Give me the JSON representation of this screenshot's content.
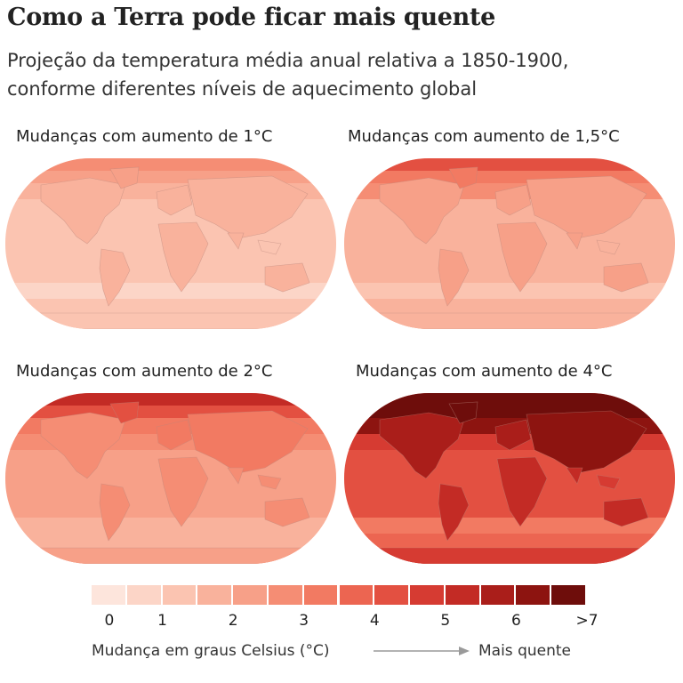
{
  "title": "Como a Terra pode ficar mais quente",
  "subtitle_line1": "Projeção da temperatura média anual relativa a 1850-1900,",
  "subtitle_line2": "conforme diferentes níveis de aquecimento global",
  "panels": [
    {
      "title": "Mudanças com aumento de 1°C",
      "warming": 1
    },
    {
      "title": "Mudanças com aumento de 1,5°C",
      "warming": 1.5
    },
    {
      "title": "Mudanças com aumento de 2°C",
      "warming": 2
    },
    {
      "title": "Mudanças com aumento de 4°C",
      "warming": 4
    }
  ],
  "legend": {
    "colors": [
      "#fde5dc",
      "#fcd5c7",
      "#fbc4b1",
      "#f9b29c",
      "#f7a088",
      "#f58d74",
      "#f27a62",
      "#ec6551",
      "#e35041",
      "#d63b32",
      "#c32b25",
      "#aa1e1a",
      "#8d1410",
      "#6e0d0b"
    ],
    "ticks": [
      "0",
      "1",
      "2",
      "3",
      "4",
      "5",
      "6",
      ">7"
    ],
    "caption": "Mudança em graus Celsius (°C)",
    "warmer": "Mais quente",
    "arrow_color": "#9a9a9a"
  },
  "chart_data": {
    "type": "heatmap",
    "title": "Como a Terra pode ficar mais quente",
    "subtitle": "Projeção da temperatura média anual relativa a 1850-1900, conforme diferentes níveis de aquecimento global",
    "maps": [
      {
        "title": "Mudanças com aumento de 1°C",
        "warming": 1
      },
      {
        "title": "Mudanças com aumento de 1,5°C",
        "warming": 1.5
      },
      {
        "title": "Mudanças com aumento de 2°C",
        "warming": 2
      },
      {
        "title": "Mudanças com aumento de 4°C",
        "warming": 4
      }
    ],
    "colorbar": {
      "ticks": [
        "0",
        "1",
        "2",
        "3",
        "4",
        "5",
        "6",
        ">7"
      ],
      "range": [
        0,
        7
      ],
      "label": "Mudança em graus Celsius (°C)",
      "direction_label": "Mais quente"
    }
  }
}
